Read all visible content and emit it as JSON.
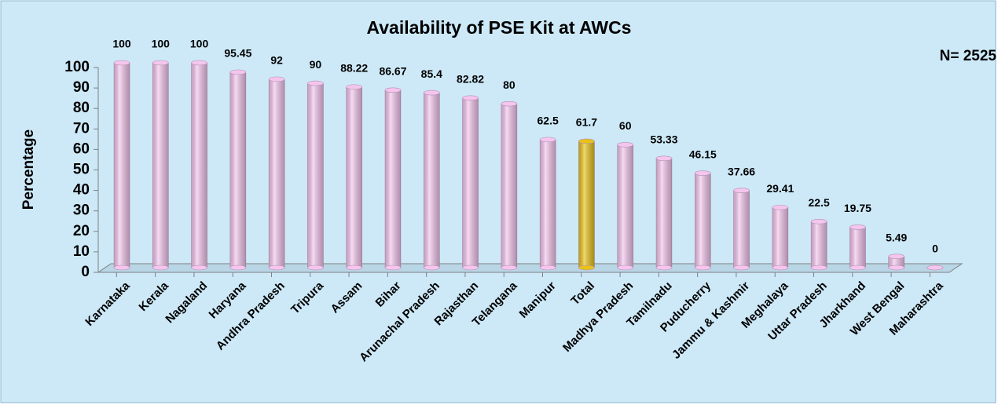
{
  "chart_data": {
    "type": "bar",
    "title": "Availability of PSE Kit at AWCs",
    "annotation": "N= 2525",
    "ylabel": "Percentage",
    "categories": [
      "Karnataka",
      "Kerala",
      "Nagaland",
      "Haryana",
      "Andhra Pradesh",
      "Tripura",
      "Assam",
      "Bihar",
      "Arunachal Pradesh",
      "Rajasthan",
      "Telangana",
      "Manipur",
      "Total",
      "Madhya Pradesh",
      "Tamilnadu",
      "Puducherry",
      "Jammu & Kashmir",
      "Meghalaya",
      "Uttar Pradesh",
      "Jharkhand",
      "West Bengal",
      "Maharashtra"
    ],
    "values": [
      100,
      100,
      100,
      95.45,
      92,
      90,
      88.22,
      86.67,
      85.4,
      82.82,
      80,
      62.5,
      61.7,
      60,
      53.33,
      46.15,
      37.66,
      29.41,
      22.5,
      19.75,
      5.49,
      0
    ],
    "colors": [
      "#f4c6ee",
      "#f4c6ee",
      "#f4c6ee",
      "#f4c6ee",
      "#f4c6ee",
      "#f4c6ee",
      "#f4c6ee",
      "#f4c6ee",
      "#f4c6ee",
      "#f4c6ee",
      "#f4c6ee",
      "#f4c6ee",
      "#e8c21a",
      "#f4c6ee",
      "#f4c6ee",
      "#f4c6ee",
      "#f4c6ee",
      "#f4c6ee",
      "#f4c6ee",
      "#f4c6ee",
      "#f4c6ee",
      "#f4c6ee"
    ],
    "ylim": [
      0,
      100
    ],
    "yticks": [
      0,
      10,
      20,
      30,
      40,
      50,
      60,
      70,
      80,
      90,
      100
    ]
  }
}
